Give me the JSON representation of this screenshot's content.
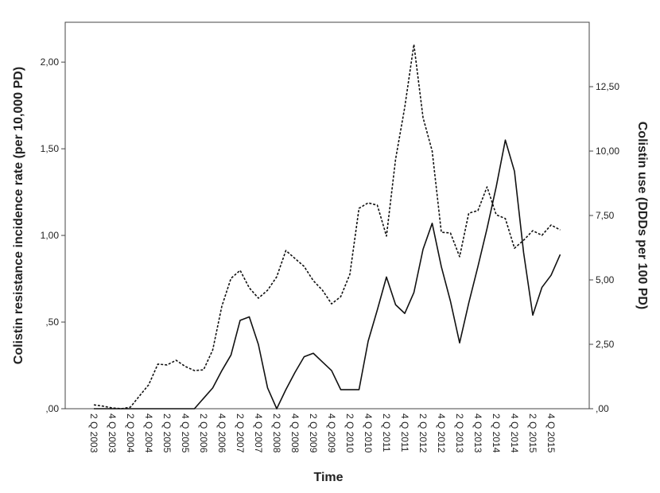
{
  "chart_data": {
    "type": "line",
    "x_label": "Time",
    "y_label": "Colistin resistance incidence rate (per 10,000 PD)",
    "y2_label": "Colistin use (DDDs per 100 PD)",
    "categories": [
      "2 Q 2003",
      null,
      "4 Q 2003",
      null,
      "2 Q 2004",
      null,
      "4 Q 2004",
      null,
      "2 Q 2005",
      null,
      "4 Q 2005",
      null,
      "2 Q 2006",
      null,
      "4 Q 2006",
      null,
      "2 Q 2007",
      null,
      "4 Q 2007",
      null,
      "2 Q 2008",
      null,
      "4 Q 2008",
      null,
      "2 Q 2009",
      null,
      "4 Q 2009",
      null,
      "2 Q 2010",
      null,
      "4 Q 2010",
      null,
      "2 Q 2011",
      null,
      "4 Q 2011",
      null,
      "2 Q 2012",
      null,
      "4 Q 2012",
      null,
      "2 Q 2013",
      null,
      "4 Q 2013",
      null,
      "2 Q 2014",
      null,
      "4 Q 2014",
      null,
      "2 Q 2015",
      null,
      "4 Q 2015",
      null
    ],
    "series": [
      {
        "color": "#111111",
        "line_style": "solid",
        "axis": "y",
        "values": [
          0,
          0,
          0,
          0,
          0,
          0,
          0,
          0,
          0,
          0,
          0,
          0,
          0.06,
          0.12,
          0.22,
          0.31,
          0.51,
          0.53,
          0.37,
          0.12,
          0,
          0.11,
          0.21,
          0.3,
          0.32,
          0.27,
          0.22,
          0.11,
          0.11,
          0.11,
          0.39,
          0.57,
          0.76,
          0.6,
          0.55,
          0.67,
          0.92,
          1.07,
          0.82,
          0.62,
          0.38,
          0.61,
          0.82,
          1.04,
          1.28,
          1.55,
          1.37,
          0.9,
          0.54,
          0.7,
          0.77,
          0.89
        ]
      },
      {
        "color": "#111111",
        "line_style": "dotted",
        "axis": "y2",
        "values": [
          0.15,
          0.1,
          0.03,
          0,
          0.06,
          0.5,
          0.93,
          1.73,
          1.7,
          1.88,
          1.64,
          1.48,
          1.51,
          2.28,
          3.98,
          5.06,
          5.37,
          4.69,
          4.29,
          4.6,
          5.12,
          6.14,
          5.83,
          5.52,
          4.97,
          4.6,
          4.07,
          4.35,
          5.22,
          7.78,
          7.99,
          7.9,
          6.7,
          9.69,
          11.7,
          14.14,
          11.3,
          10.0,
          6.85,
          6.82,
          5.9,
          7.59,
          7.69,
          8.61,
          7.53,
          7.38,
          6.23,
          6.54,
          6.91,
          6.73,
          7.13,
          6.94
        ]
      }
    ],
    "ylim": [
      0,
      2.23
    ],
    "yticks": [
      {
        "value": 0,
        "label": ",00"
      },
      {
        "value": 0.5,
        "label": ",50"
      },
      {
        "value": 1,
        "label": "1,00"
      },
      {
        "value": 1.5,
        "label": "1,50"
      },
      {
        "value": 2,
        "label": "2,00"
      }
    ],
    "y2lim": [
      0,
      15
    ],
    "y2ticks": [
      {
        "value": 0,
        "label": ",00"
      },
      {
        "value": 2.5,
        "label": "2,50"
      },
      {
        "value": 5,
        "label": "5,00"
      },
      {
        "value": 7.5,
        "label": "7,50"
      },
      {
        "value": 10,
        "label": "10,00"
      },
      {
        "value": 12.5,
        "label": "12,50"
      }
    ]
  }
}
